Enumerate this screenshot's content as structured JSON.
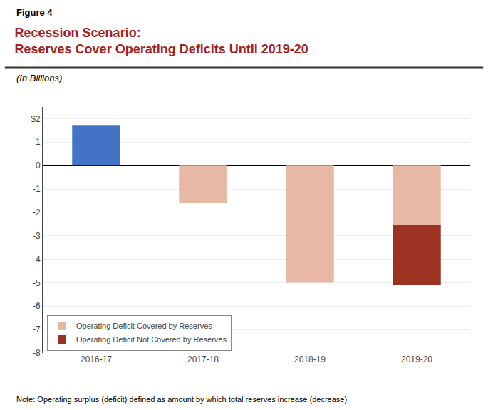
{
  "chart_data": {
    "type": "bar",
    "title": "Recession Scenario:\nReserves Cover Operating Deficits Until 2019-20",
    "subtitle": "(In Billions)",
    "annotations": [
      "Figure 4",
      "Note: Operating surplus (deficit) defined as amount by which total reserves increase (decrease)."
    ],
    "categories": [
      "2016-17",
      "2017-18",
      "2018-19",
      "2019-20"
    ],
    "series": [
      {
        "color": "#4472C4",
        "values": [
          1.7,
          0,
          0,
          0
        ]
      },
      {
        "name": "Operating Deficit Covered by Reserves",
        "color": "#E8B8A6",
        "values": [
          0,
          -1.6,
          -5.0,
          -2.55
        ]
      },
      {
        "name": "Operating Deficit Not Covered by Reserves",
        "color": "#9B3222",
        "values": [
          0,
          0,
          0,
          -2.55
        ]
      }
    ],
    "stacked": true,
    "ylim": [
      -8,
      2.5
    ],
    "yticks": [
      -8,
      -7,
      -6,
      -5,
      -4,
      -3,
      -2,
      -1,
      0,
      1,
      {
        "value": 2,
        "label": "$2"
      }
    ],
    "grid": true,
    "legend": "lower left"
  }
}
